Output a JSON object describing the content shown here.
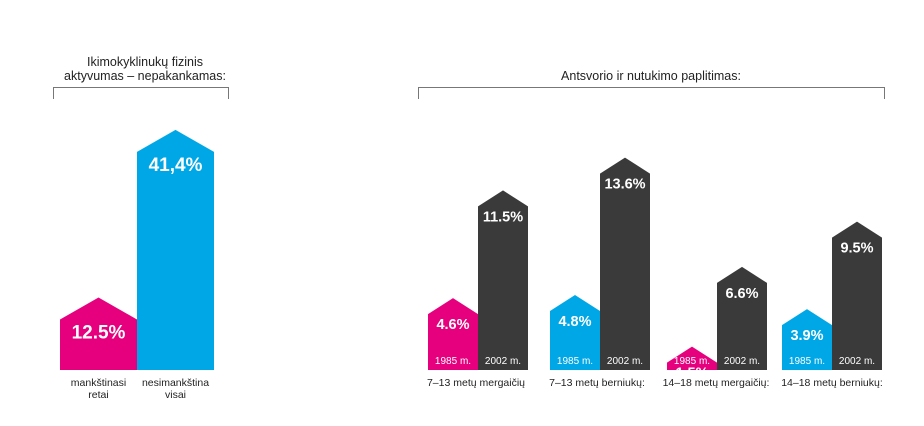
{
  "colors": {
    "magenta": "#e6007e",
    "cyan": "#00a7e7",
    "dark": "#3a3a3a"
  },
  "chart_data": [
    {
      "type": "bar",
      "title": "Ikimokyklinukų fizinis aktyvumas – nepakankamas:",
      "title_lines": [
        "Ikimokyklinukų fizinis",
        "aktyvumas – nepakankamas:"
      ],
      "categories": [
        "mankštinasi retai",
        "nesimankština visai"
      ],
      "category_lines": [
        [
          "mankštinasi",
          "retai"
        ],
        [
          "nesimankština",
          "visai"
        ]
      ],
      "values": [
        12.5,
        41.4
      ],
      "value_labels": [
        "12.5%",
        "41,4%"
      ],
      "bar_colors": [
        "#e6007e",
        "#00a7e7"
      ]
    },
    {
      "type": "bar",
      "title": "Antsvorio ir nutukimo paplitimas:",
      "categories": [
        "7–13 metų mergaičių",
        "7–13 metų berniukų:",
        "14–18 metų mergaičių:",
        "14–18 metų berniukų:"
      ],
      "series": [
        {
          "name": "1985 m.",
          "values": [
            4.6,
            4.8,
            1.5,
            3.9
          ],
          "value_labels": [
            "4.6%",
            "4.8%",
            "1.5%",
            "3.9%"
          ],
          "colors": [
            "#e6007e",
            "#00a7e7",
            "#e6007e",
            "#00a7e7"
          ]
        },
        {
          "name": "2002 m.",
          "values": [
            11.5,
            13.6,
            6.6,
            9.5
          ],
          "value_labels": [
            "11.5%",
            "13.6%",
            "6.6%",
            "9.5%"
          ],
          "colors": [
            "#3a3a3a",
            "#3a3a3a",
            "#3a3a3a",
            "#3a3a3a"
          ]
        }
      ]
    }
  ]
}
